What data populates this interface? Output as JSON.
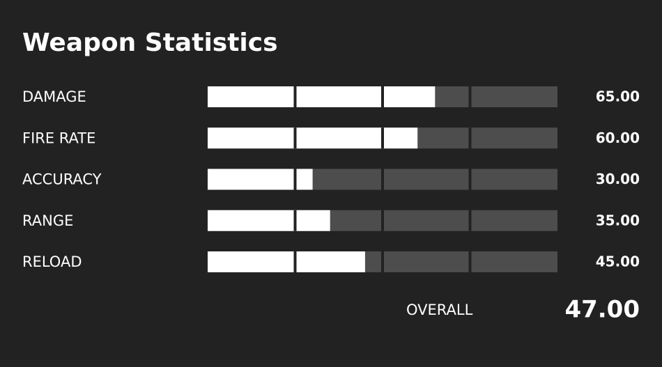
{
  "title": "Weapon Statistics",
  "stats": [
    {
      "label": "DAMAGE",
      "value": 65,
      "value_label": "65.00"
    },
    {
      "label": "FIRE RATE",
      "value": 60,
      "value_label": "60.00"
    },
    {
      "label": "ACCURACY",
      "value": 30,
      "value_label": "30.00"
    },
    {
      "label": "RANGE",
      "value": 35,
      "value_label": "35.00"
    },
    {
      "label": "RELOAD",
      "value": 45,
      "value_label": "45.00"
    }
  ],
  "xlim": [
    0,
    100
  ],
  "xticks": [
    0,
    25,
    50,
    75,
    100
  ],
  "overall": {
    "label": "OVERALL",
    "value": "47.00"
  }
}
